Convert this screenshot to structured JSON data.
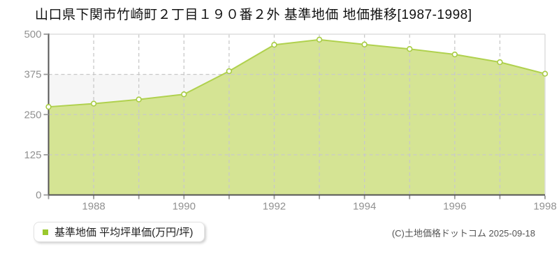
{
  "page": {
    "title": "山口県下関市竹崎町２丁目１９０番２外 基準地価 地価推移[1987-1998]"
  },
  "legend": {
    "label": "基準地価 平均坪単価(万円/坪)",
    "marker_color": "#9ac82e"
  },
  "footer": {
    "copyright": "(C)土地価格ドットコム 2025-09-18"
  },
  "chart_data": {
    "type": "area",
    "title": "山口県下関市竹崎町２丁目１９０番２外 基準地価 地価推移[1987-1998]",
    "series_name": "基準地価 平均坪単価(万円/坪)",
    "x": [
      1987,
      1988,
      1989,
      1990,
      1991,
      1992,
      1993,
      1994,
      1995,
      1996,
      1997,
      1998
    ],
    "values": [
      274,
      284,
      297,
      313,
      385,
      467,
      483,
      468,
      454,
      437,
      413,
      377
    ],
    "xlabel": "",
    "ylabel": "平均坪単価(万円/坪)",
    "ylim": [
      0,
      500
    ],
    "yticks": [
      0,
      125,
      250,
      375,
      500
    ],
    "xtick_labels": [
      1988,
      1990,
      1992,
      1994,
      1996,
      1998
    ],
    "grid": true,
    "legend_position": "bottom-left",
    "colors": {
      "area_fill": "#d5e494",
      "line": "#b0d14e",
      "marker_fill": "#ffffff",
      "marker_stroke": "#a8cc44",
      "axis": "#555555",
      "tick": "#999999",
      "grid": "#c9c9c9",
      "band": "#f6f6f6",
      "tick_label": "#919191",
      "plot_border": "#dddddd"
    }
  }
}
